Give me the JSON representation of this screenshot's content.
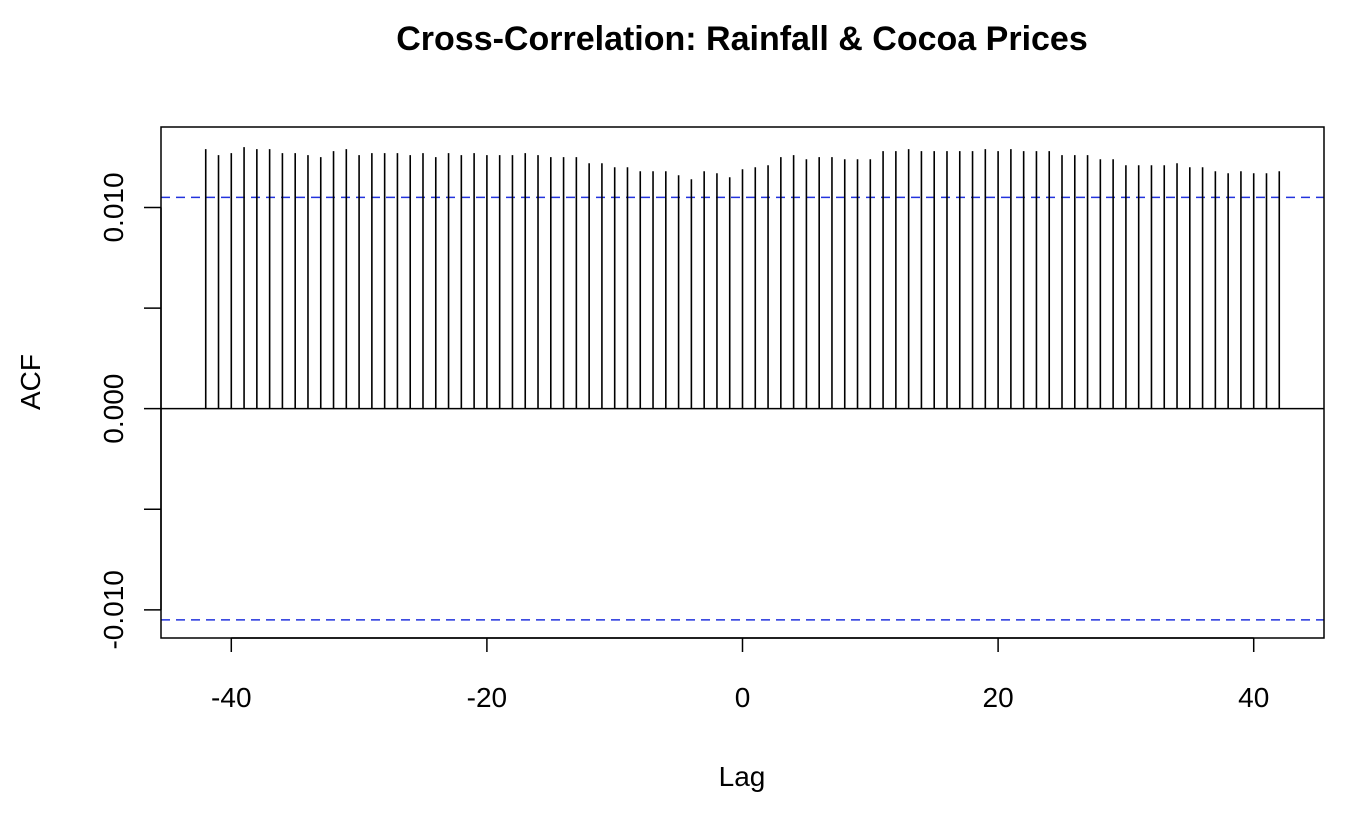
{
  "chart_data": {
    "type": "bar",
    "title": "Cross-Correlation: Rainfall & Cocoa Prices",
    "xlabel": "Lag",
    "ylabel": "ACF",
    "xlim": [
      -45.5,
      45.5
    ],
    "ylim": [
      -0.0114,
      0.014
    ],
    "xticks": [
      -40,
      -20,
      0,
      20,
      40
    ],
    "xtick_labels": [
      "-40",
      "-20",
      "0",
      "20",
      "40"
    ],
    "yticks": [
      -0.01,
      -0.005,
      0.0,
      0.005,
      0.01
    ],
    "ytick_labels": [
      "-0.010",
      "",
      "0.000",
      "",
      "0.010"
    ],
    "confidence_bound": 0.0105,
    "colors": {
      "spikes": "#000000",
      "zero_line": "#000000",
      "confidence_lines": "#2233dd"
    },
    "grid": false,
    "legend": "none",
    "series": [
      {
        "x": [
          -42,
          -41,
          -40,
          -39,
          -38,
          -37,
          -36,
          -35,
          -34,
          -33,
          -32,
          -31,
          -30,
          -29,
          -28,
          -27,
          -26,
          -25,
          -24,
          -23,
          -22,
          -21,
          -20,
          -19,
          -18,
          -17,
          -16,
          -15,
          -14,
          -13,
          -12,
          -11,
          -10,
          -9,
          -8,
          -7,
          -6,
          -5,
          -4,
          -3,
          -2,
          -1,
          0,
          1,
          2,
          3,
          4,
          5,
          6,
          7,
          8,
          9,
          10,
          11,
          12,
          13,
          14,
          15,
          16,
          17,
          18,
          19,
          20,
          21,
          22,
          23,
          24,
          25,
          26,
          27,
          28,
          29,
          30,
          31,
          32,
          33,
          34,
          35,
          36,
          37,
          38,
          39,
          40,
          41,
          42
        ],
        "values": [
          0.0129,
          0.0126,
          0.0127,
          0.013,
          0.0129,
          0.0129,
          0.0127,
          0.0127,
          0.0126,
          0.0125,
          0.0128,
          0.0129,
          0.0126,
          0.0127,
          0.0127,
          0.0127,
          0.0126,
          0.0127,
          0.0125,
          0.0127,
          0.0126,
          0.0127,
          0.0126,
          0.0126,
          0.0126,
          0.0127,
          0.0126,
          0.0125,
          0.0125,
          0.0125,
          0.0122,
          0.0122,
          0.012,
          0.012,
          0.0118,
          0.0118,
          0.0118,
          0.0116,
          0.0114,
          0.0118,
          0.0117,
          0.0115,
          0.0119,
          0.012,
          0.0121,
          0.0125,
          0.0126,
          0.0124,
          0.0125,
          0.0125,
          0.0124,
          0.0124,
          0.0124,
          0.0128,
          0.0128,
          0.0129,
          0.0128,
          0.0128,
          0.0128,
          0.0128,
          0.0128,
          0.0129,
          0.0128,
          0.0129,
          0.0128,
          0.0128,
          0.0128,
          0.0126,
          0.0126,
          0.0126,
          0.0124,
          0.0124,
          0.0121,
          0.0121,
          0.0121,
          0.0121,
          0.0122,
          0.012,
          0.012,
          0.0118,
          0.0117,
          0.0118,
          0.0117,
          0.0117,
          0.0118
        ]
      }
    ]
  }
}
